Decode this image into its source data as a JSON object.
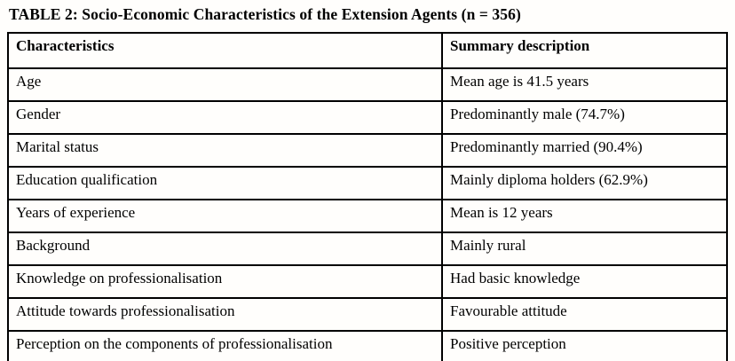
{
  "title": "TABLE 2: Socio-Economic Characteristics of the Extension Agents (n = 356)",
  "table": {
    "columns": {
      "characteristics": "Characteristics",
      "description": "Summary description"
    },
    "rows": [
      {
        "characteristic": "Age",
        "description": "Mean age is 41.5 years"
      },
      {
        "characteristic": "Gender",
        "description": "Predominantly male (74.7%)"
      },
      {
        "characteristic": "Marital status",
        "description": "Predominantly married (90.4%)"
      },
      {
        "characteristic": "Education qualification",
        "description": "Mainly diploma holders (62.9%)"
      },
      {
        "characteristic": "Years of experience",
        "description": "Mean is 12 years"
      },
      {
        "characteristic": "Background",
        "description": "Mainly rural"
      },
      {
        "characteristic": "Knowledge on professionalisation",
        "description": "Had basic knowledge"
      },
      {
        "characteristic": "Attitude towards professionalisation",
        "description": "Favourable attitude"
      },
      {
        "characteristic": "Perception on the components of professionalisation",
        "description": "Positive perception"
      }
    ]
  }
}
